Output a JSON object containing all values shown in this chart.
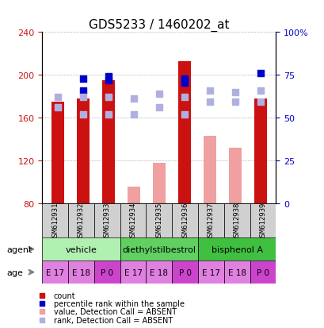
{
  "title": "GDS5233 / 1460202_at",
  "samples": [
    "GSM612931",
    "GSM612932",
    "GSM612933",
    "GSM612934",
    "GSM612935",
    "GSM612936",
    "GSM612937",
    "GSM612938",
    "GSM612939"
  ],
  "count_values": [
    175,
    178,
    195,
    null,
    null,
    213,
    null,
    null,
    178
  ],
  "count_absent_values": [
    118,
    null,
    null,
    95,
    118,
    195,
    143,
    132,
    null
  ],
  "rank_values": [
    null,
    185,
    195,
    null,
    null,
    193,
    null,
    null,
    null
  ],
  "rank_absent_values": [
    170,
    163,
    163,
    163,
    170,
    163,
    175,
    175,
    175
  ],
  "percentile_values": [
    null,
    73,
    74,
    null,
    null,
    73,
    null,
    null,
    76
  ],
  "percentile_absent_values": [
    62,
    62,
    62,
    61,
    64,
    62,
    66,
    65,
    66
  ],
  "ylim_left": [
    80,
    240
  ],
  "ylim_right": [
    0,
    100
  ],
  "yticks_left": [
    80,
    120,
    160,
    200,
    240
  ],
  "yticks_right": [
    0,
    25,
    50,
    75,
    100
  ],
  "ytick_labels_left": [
    "80",
    "120",
    "160",
    "200",
    "240"
  ],
  "ytick_labels_right": [
    "0",
    "25",
    "50",
    "75",
    "100%"
  ],
  "agent_groups": [
    {
      "label": "vehicle",
      "start": 0,
      "end": 3,
      "color": "#b0f0b0"
    },
    {
      "label": "diethylstilbestrol",
      "start": 3,
      "end": 6,
      "color": "#60d060"
    },
    {
      "label": "bisphenol A",
      "start": 6,
      "end": 9,
      "color": "#40c040"
    }
  ],
  "age_labels": [
    "E 17",
    "E 18",
    "P 0",
    "E 17",
    "E 18",
    "P 0",
    "E 17",
    "E 18",
    "P 0"
  ],
  "age_color_light": "#e080e0",
  "age_color_dark": "#cc44cc",
  "color_count": "#cc1111",
  "color_count_absent": "#f0a0a0",
  "color_rank": "#0000cc",
  "color_rank_absent": "#b0b0e0",
  "bar_width": 0.5,
  "dot_size": 30
}
